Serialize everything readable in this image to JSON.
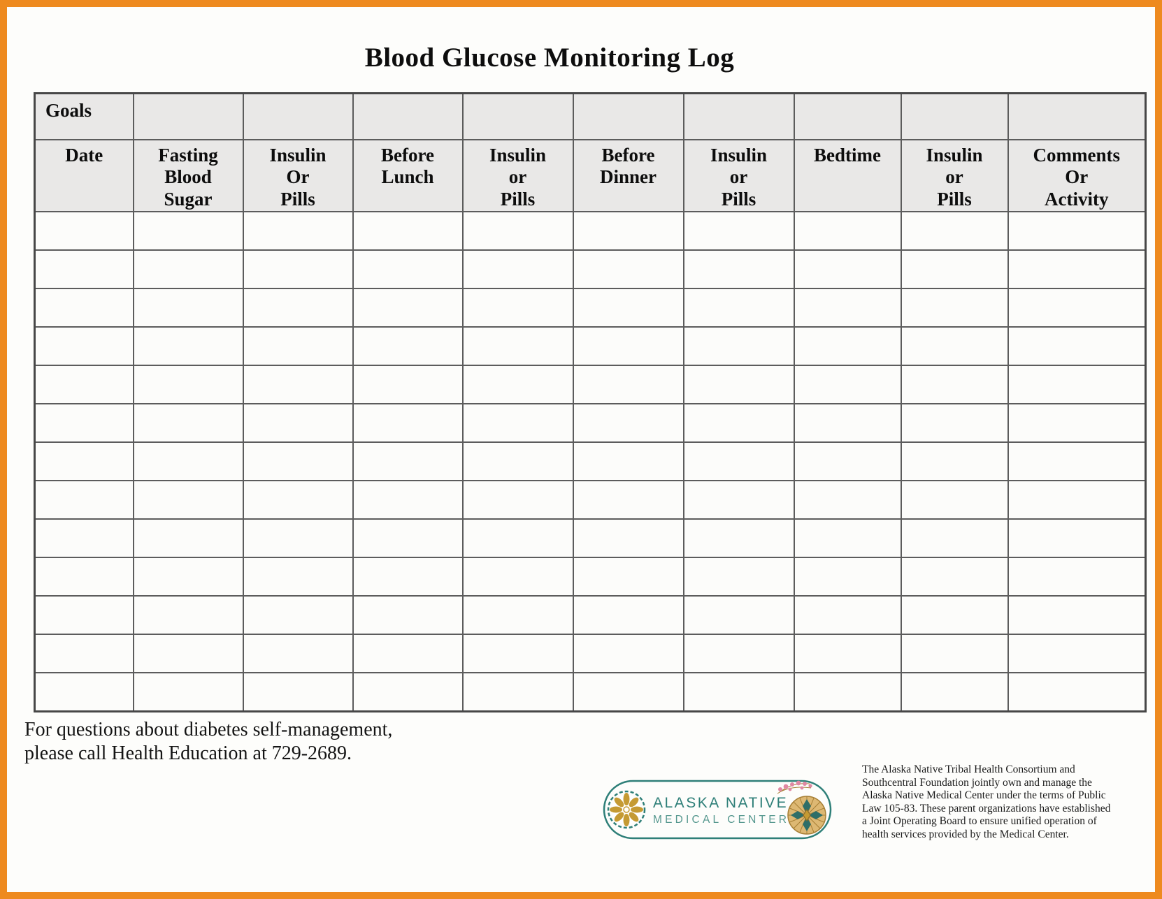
{
  "title": "Blood Glucose Monitoring Log",
  "table": {
    "goals_label": "Goals",
    "columns": [
      {
        "label": "Date"
      },
      {
        "label": "Fasting\nBlood\nSugar"
      },
      {
        "label": "Insulin\nOr\nPills"
      },
      {
        "label": "Before\nLunch"
      },
      {
        "label": "Insulin\nor\nPills"
      },
      {
        "label": "Before\nDinner"
      },
      {
        "label": "Insulin\nor\nPills"
      },
      {
        "label": "Bedtime"
      },
      {
        "label": "Insulin\nor\nPills"
      },
      {
        "label": "Comments\nOr\nActivity"
      }
    ],
    "empty_rows": 13
  },
  "footer": {
    "line1": "For questions about diabetes self-management,",
    "line2": "please call Health Education at 729-2689."
  },
  "logo": {
    "line1": "ALASKA NATIVE",
    "line2": "MEDICAL CENTER"
  },
  "legal": "The Alaska Native Tribal Health Consortium and\nSouthcentral Foundation jointly own and manage the\nAlaska Native Medical Center under the terms of Public\nLaw 105-83.  These parent organizations have established\na Joint Operating Board to ensure unified operation of\nhealth services provided by the Medical Center.",
  "colors": {
    "frame_orange": "#EE8A1F",
    "header_gray": "#E9E8E7",
    "logo_teal": "#2E7F78",
    "logo_gold": "#C59A33",
    "logo_pink": "#E088A4"
  }
}
